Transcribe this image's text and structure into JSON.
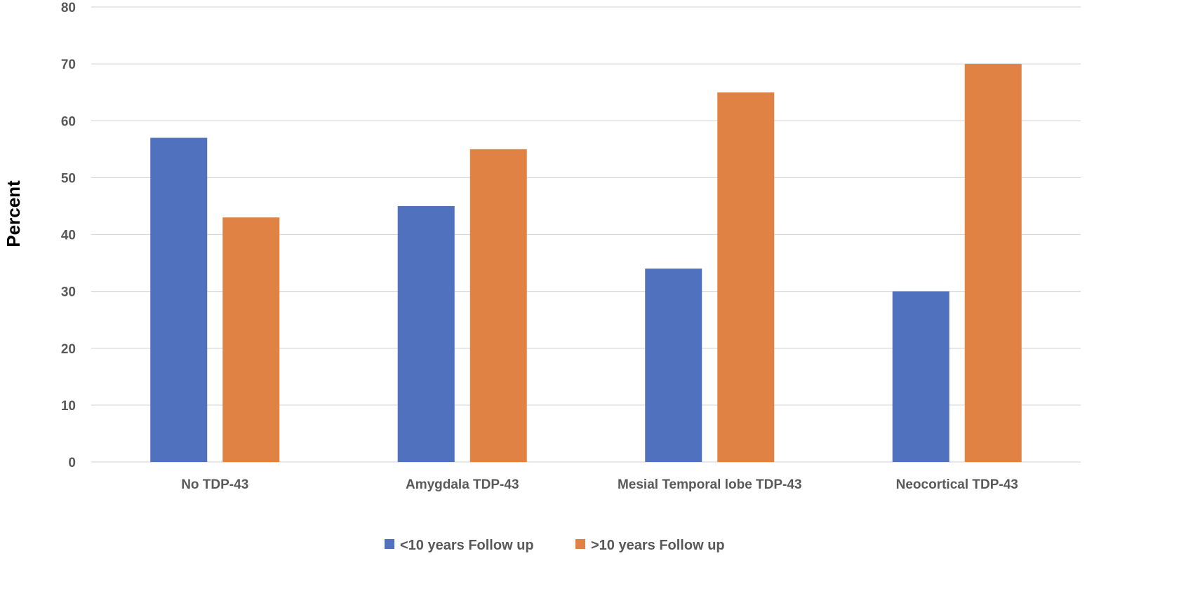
{
  "chart_data": {
    "type": "bar",
    "title": "",
    "xlabel": "",
    "ylabel": "Percent",
    "ylim": [
      0,
      80
    ],
    "yticks": [
      0,
      10,
      20,
      30,
      40,
      50,
      60,
      70,
      80
    ],
    "grid": true,
    "legend_position": "bottom",
    "categories": [
      "No TDP-43",
      "Amygdala TDP-43",
      "Mesial Temporal lobe TDP-43",
      "Neocortical TDP-43"
    ],
    "series": [
      {
        "name": "<10 years Follow up",
        "color": "#4f71be",
        "values": [
          57,
          45,
          34,
          30
        ]
      },
      {
        "name": ">10 years Follow up",
        "color": "#e08244",
        "values": [
          43,
          55,
          65,
          70
        ]
      }
    ]
  }
}
